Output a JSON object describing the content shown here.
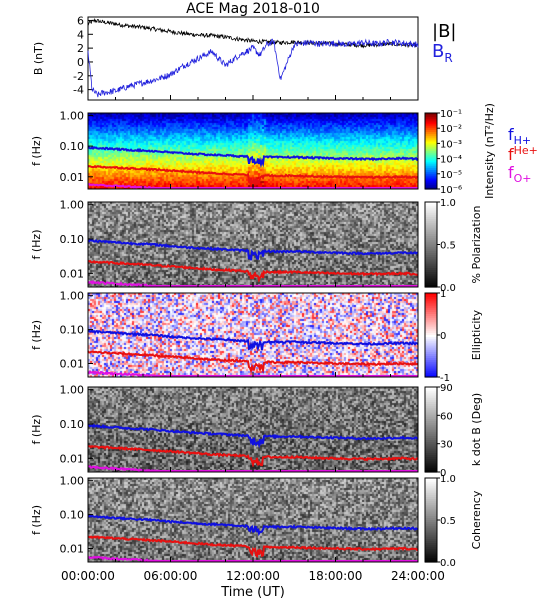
{
  "title": "ACE Mag 2018-010",
  "colors": {
    "B_total": "#000000",
    "B_R": "#2222dd",
    "f_Hplus": "#1010e0",
    "f_Heplus": "#e81010",
    "f_Oplus": "#e010e0"
  },
  "chart_data": [
    {
      "type": "line",
      "panel": "magnetic-field",
      "ylabel": "B (nT)",
      "yticks": [
        "6",
        "4",
        "2",
        "0",
        "-2",
        "-4"
      ],
      "ylim": [
        -5.5,
        6.5
      ],
      "x_unit": "hours UT",
      "xlim": [
        0,
        24
      ],
      "series": [
        {
          "name": "|B|",
          "x": [
            0,
            0.5,
            1,
            2,
            3,
            4,
            5,
            6,
            7,
            8,
            9,
            10,
            11,
            12,
            13,
            14,
            15,
            16,
            17,
            18,
            19,
            20,
            21,
            22,
            23,
            24
          ],
          "values": [
            5.5,
            6.0,
            5.8,
            5.5,
            5.2,
            5.0,
            4.7,
            4.4,
            4.1,
            3.9,
            3.8,
            3.6,
            3.3,
            3.0,
            2.9,
            2.8,
            2.9,
            2.8,
            2.7,
            2.6,
            2.5,
            2.4,
            2.5,
            2.6,
            2.5,
            2.4
          ]
        },
        {
          "name": "B_R",
          "x": [
            0,
            0.3,
            0.7,
            1,
            2,
            3,
            4,
            5,
            6,
            7,
            8,
            9,
            10,
            11,
            12,
            12.5,
            13,
            13.5,
            14,
            15,
            16,
            17,
            18,
            19,
            20,
            21,
            22,
            23,
            24
          ],
          "values": [
            1.5,
            -4.0,
            -4.8,
            -4.5,
            -4.2,
            -3.5,
            -3.0,
            -2.5,
            -1.8,
            -0.5,
            0.5,
            1.5,
            -0.5,
            1.0,
            2.0,
            1.0,
            2.5,
            3.0,
            -2.5,
            2.5,
            2.8,
            2.6,
            2.7,
            2.5,
            2.8,
            2.6,
            2.9,
            2.7,
            2.5
          ]
        }
      ]
    },
    {
      "type": "heatmap",
      "panel": "intensity",
      "ylabel": "f (Hz)",
      "yticks": [
        "1.00",
        "0.10",
        "0.01"
      ],
      "colorbar_label": "Intensity (nT²/Hz)",
      "colorbar_ticks": [
        "10⁻¹",
        "10⁻²",
        "10⁻³",
        "10⁻⁴",
        "10⁻⁵",
        "10⁻⁶"
      ]
    },
    {
      "type": "heatmap",
      "panel": "polarization",
      "ylabel": "f (Hz)",
      "yticks": [
        "1.00",
        "0.10",
        "0.01"
      ],
      "colorbar_label": "% Polarization",
      "colorbar_ticks": [
        "1.0",
        "0.5",
        "0.0"
      ]
    },
    {
      "type": "heatmap",
      "panel": "ellipticity",
      "ylabel": "f (Hz)",
      "yticks": [
        "1.00",
        "0.10",
        "0.01"
      ],
      "colorbar_label": "Ellipticity",
      "colorbar_ticks": [
        "1",
        "0",
        "-1"
      ]
    },
    {
      "type": "heatmap",
      "panel": "k-dot-b",
      "ylabel": "f (Hz)",
      "yticks": [
        "1.00",
        "0.10",
        "0.01"
      ],
      "colorbar_label": "k dot B (Deg)",
      "colorbar_ticks": [
        "90",
        "60",
        "30",
        "0"
      ]
    },
    {
      "type": "heatmap",
      "panel": "coherency",
      "ylabel": "f (Hz)",
      "yticks": [
        "1.00",
        "0.10",
        "0.01"
      ],
      "colorbar_label": "Coherency",
      "colorbar_ticks": [
        "1.0",
        "0.5",
        "0.0"
      ]
    }
  ],
  "gyrofrequency_lines": {
    "x": [
      0,
      1,
      2,
      3,
      4,
      5,
      6,
      7,
      8,
      9,
      10,
      11,
      12,
      13,
      14,
      15,
      16,
      17,
      18,
      19,
      20,
      21,
      22,
      23,
      24
    ],
    "f_Hplus": [
      0.09,
      0.085,
      0.08,
      0.075,
      0.072,
      0.068,
      0.062,
      0.058,
      0.055,
      0.052,
      0.05,
      0.047,
      0.045,
      0.044,
      0.043,
      0.044,
      0.042,
      0.041,
      0.04,
      0.039,
      0.038,
      0.038,
      0.039,
      0.04,
      0.038
    ],
    "f_Heplus": [
      0.022,
      0.021,
      0.02,
      0.019,
      0.018,
      0.017,
      0.016,
      0.015,
      0.014,
      0.013,
      0.0125,
      0.012,
      0.011,
      0.011,
      0.0108,
      0.011,
      0.0105,
      0.0102,
      0.01,
      0.0098,
      0.0096,
      0.0096,
      0.0098,
      0.01,
      0.0095
    ],
    "f_Oplus": [
      0.0056,
      0.0053,
      0.005,
      0.0048,
      0.0045,
      0.0042,
      0.004,
      0.0038,
      0.0035,
      0.0033,
      0.0031,
      0.003,
      0.0028,
      0.0028,
      0.0027,
      0.0028,
      0.0026,
      0.0026,
      0.0025,
      0.0025,
      0.0024,
      0.0024,
      0.0025,
      0.0025,
      0.0024
    ]
  },
  "legend": {
    "B_total": "|B|",
    "B_R_main": "B",
    "B_R_sub": "R",
    "f_Hplus_main": "f",
    "f_Hplus_sub": "H+",
    "f_Heplus_main": "f",
    "f_Heplus_sub": "He+",
    "f_Oplus_main": "f",
    "f_Oplus_sub": "O+"
  },
  "x_axis": {
    "ticks": [
      "00:00:00",
      "06:00:00",
      "12:00:00",
      "18:00:00",
      "24:00:00"
    ],
    "label": "Time (UT)"
  }
}
